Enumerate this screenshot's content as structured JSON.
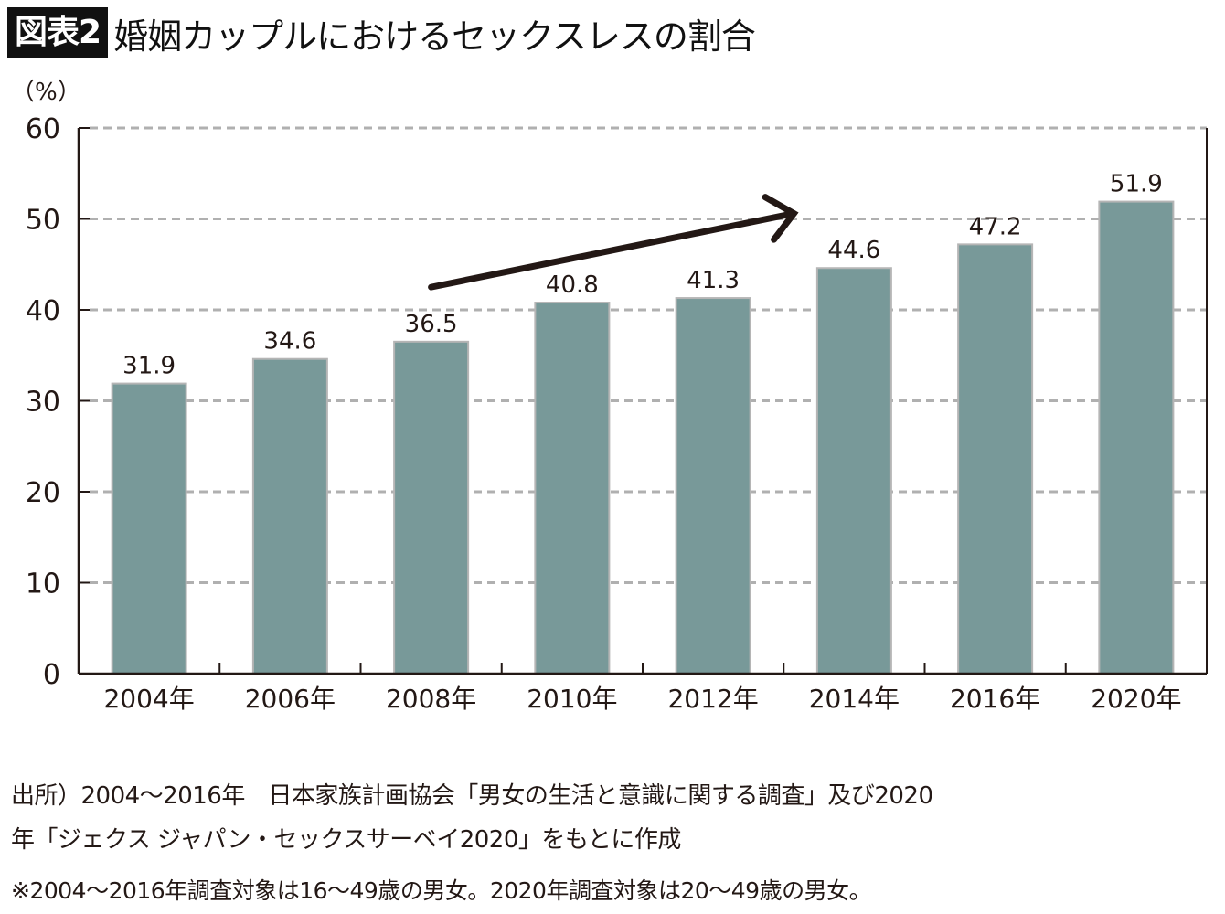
{
  "header": {
    "figure_label": "図表2",
    "title": "婚姻カップルにおけるセックスレスの割合"
  },
  "chart_data": {
    "type": "bar",
    "title": "婚姻カップルにおけるセックスレスの割合",
    "ylabel": "（%）",
    "xlabel": "",
    "categories": [
      "2004年",
      "2006年",
      "2008年",
      "2010年",
      "2012年",
      "2014年",
      "2016年",
      "2020年"
    ],
    "values": [
      31.9,
      34.6,
      36.5,
      40.8,
      41.3,
      44.6,
      47.2,
      51.9
    ],
    "data_labels": [
      "31.9",
      "34.6",
      "36.5",
      "40.8",
      "41.3",
      "44.6",
      "47.2",
      "51.9"
    ],
    "ylim": [
      0,
      60
    ],
    "yticks": [
      0,
      10,
      20,
      30,
      40,
      50,
      60
    ],
    "ytick_labels": [
      "0",
      "10",
      "20",
      "30",
      "40",
      "50",
      "60"
    ],
    "grid": true,
    "grid_style": "dashed",
    "legend": "none",
    "annotations": [
      {
        "type": "arrow",
        "meaning": "upward trend",
        "from": {
          "category": "2008年",
          "value": 42.5
        },
        "to": {
          "category": "2014年",
          "value": 50.6
        }
      }
    ],
    "colors": {
      "bar": "#789999",
      "bar_edge": "#b5b5b5",
      "grid": "#b0b0b0",
      "axis": "#231815",
      "arrow": "#231815"
    }
  },
  "footer": {
    "source_line1": "出所）2004〜2016年　日本家族計画協会「男女の生活と意識に関する調査」及び2020",
    "source_line2": "年「ジェクス ジャパン・セックスサーベイ2020」をもとに作成",
    "note": "※2004〜2016年調査対象は16〜49歳の男女。2020年調査対象は20〜49歳の男女。"
  }
}
